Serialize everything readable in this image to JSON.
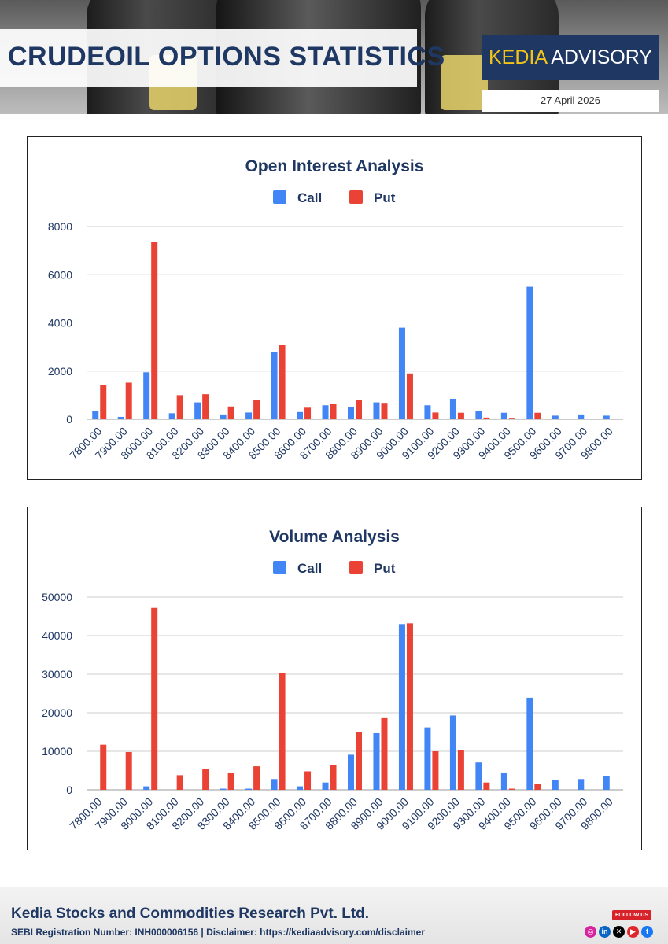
{
  "header": {
    "title": "CRUDEOIL OPTIONS STATISTICS",
    "brand_part1": "KEDIA",
    "brand_part2": " ADVISORY",
    "date": "27 April 2026"
  },
  "footer": {
    "company": "Kedia Stocks and Commodities Research Pvt. Ltd.",
    "registration": "SEBI Registration Number: INH000006156 | Disclaimer: https://kediaadvisory.com/disclaimer",
    "follow_label": "FOLLOW US",
    "social_icons": [
      "instagram-icon",
      "linkedin-icon",
      "x-icon",
      "youtube-icon",
      "facebook-icon"
    ]
  },
  "colors": {
    "call": "#4285f4",
    "put": "#ea4335",
    "grid": "#cccccc",
    "text": "#1f3763"
  },
  "chart_data": [
    {
      "type": "bar",
      "title": "Open Interest Analysis",
      "categories": [
        "7800.00",
        "7900.00",
        "8000.00",
        "8100.00",
        "8200.00",
        "8300.00",
        "8400.00",
        "8500.00",
        "8600.00",
        "8700.00",
        "8800.00",
        "8900.00",
        "9000.00",
        "9100.00",
        "9200.00",
        "9300.00",
        "9400.00",
        "9500.00",
        "9600.00",
        "9700.00",
        "9800.00"
      ],
      "series": [
        {
          "name": "Call",
          "color": "#4285f4",
          "values": [
            350,
            100,
            1950,
            250,
            700,
            200,
            280,
            2800,
            300,
            580,
            500,
            700,
            3800,
            580,
            850,
            350,
            270,
            5500,
            150,
            200,
            150
          ]
        },
        {
          "name": "Put",
          "color": "#ea4335",
          "values": [
            1420,
            1520,
            7350,
            1000,
            1040,
            530,
            800,
            3100,
            480,
            640,
            800,
            680,
            1900,
            280,
            270,
            70,
            60,
            270,
            0,
            0,
            0
          ]
        }
      ],
      "y_ticks": [
        "0",
        "2000",
        "4000",
        "6000",
        "8000"
      ],
      "ylim": [
        0,
        8000
      ],
      "legend": "top",
      "grid": true,
      "xlabel": "",
      "ylabel": ""
    },
    {
      "type": "bar",
      "title": "Volume Analysis",
      "categories": [
        "7800.00",
        "7900.00",
        "8000.00",
        "8100.00",
        "8200.00",
        "8300.00",
        "8400.00",
        "8500.00",
        "8600.00",
        "8700.00",
        "8800.00",
        "8900.00",
        "9000.00",
        "9100.00",
        "9200.00",
        "9300.00",
        "9400.00",
        "9500.00",
        "9600.00",
        "9700.00",
        "9800.00"
      ],
      "series": [
        {
          "name": "Call",
          "color": "#4285f4",
          "values": [
            0,
            0,
            900,
            0,
            0,
            300,
            300,
            2800,
            900,
            1900,
            9100,
            14700,
            43000,
            16200,
            19300,
            7100,
            4500,
            23900,
            2500,
            2800,
            3500
          ]
        },
        {
          "name": "Put",
          "color": "#ea4335",
          "values": [
            11700,
            9800,
            47200,
            3800,
            5400,
            4500,
            6100,
            30400,
            4800,
            6400,
            15000,
            18600,
            43200,
            10000,
            10400,
            1900,
            300,
            1500,
            0,
            0,
            0
          ]
        }
      ],
      "y_ticks": [
        "0",
        "10000",
        "20000",
        "30000",
        "40000",
        "50000"
      ],
      "ylim": [
        0,
        50000
      ],
      "legend": "top",
      "grid": true,
      "xlabel": "",
      "ylabel": ""
    }
  ]
}
